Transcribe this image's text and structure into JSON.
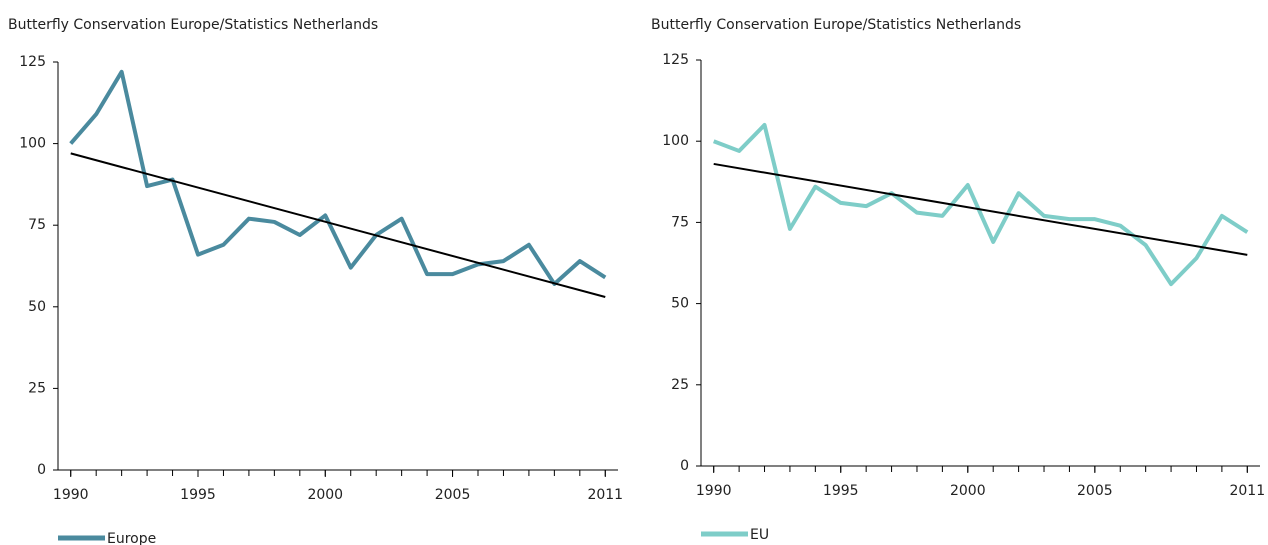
{
  "chart_data": [
    {
      "type": "line",
      "source": "Butterfly Conservation Europe/Statistics Netherlands",
      "x": [
        1990,
        1991,
        1992,
        1993,
        1994,
        1995,
        1996,
        1997,
        1998,
        1999,
        2000,
        2001,
        2002,
        2003,
        2004,
        2005,
        2006,
        2007,
        2008,
        2009,
        2010,
        2011
      ],
      "series": [
        {
          "name": "Europe",
          "color": "#4a8a9e",
          "values": [
            100,
            109,
            122,
            87,
            89,
            66,
            69,
            77,
            76,
            72,
            78,
            62,
            72,
            77,
            60,
            60,
            63,
            64,
            69,
            57,
            64,
            59
          ]
        }
      ],
      "trend": {
        "x": [
          1990,
          2011
        ],
        "values": [
          97,
          53
        ],
        "color": "#000000"
      },
      "xlim": [
        1989.5,
        2011.5
      ],
      "xticks": [
        1990,
        1995,
        2000,
        2005,
        2011
      ],
      "ylim": [
        0,
        125
      ],
      "yticks": [
        0,
        25,
        50,
        75,
        100,
        125
      ],
      "grid": false,
      "legend": "bottom"
    },
    {
      "type": "line",
      "source": "Butterfly Conservation Europe/Statistics Netherlands",
      "x": [
        1990,
        1991,
        1992,
        1993,
        1994,
        1995,
        1996,
        1997,
        1998,
        1999,
        2000,
        2001,
        2002,
        2003,
        2004,
        2005,
        2006,
        2007,
        2008,
        2009,
        2010,
        2011
      ],
      "series": [
        {
          "name": "EU",
          "color": "#7ecdc8",
          "values": [
            100,
            97,
            105,
            73,
            86,
            81,
            80,
            84,
            78,
            77,
            86.5,
            69,
            84,
            77,
            76,
            76,
            74,
            68,
            56,
            64,
            77,
            72
          ]
        }
      ],
      "trend": {
        "x": [
          1990,
          2011
        ],
        "values": [
          93,
          65
        ],
        "color": "#000000"
      },
      "xlim": [
        1989.5,
        2011.5
      ],
      "xticks": [
        1990,
        1995,
        2000,
        2005,
        2011
      ],
      "ylim": [
        0,
        125
      ],
      "yticks": [
        0,
        25,
        50,
        75,
        100,
        125
      ],
      "grid": false,
      "legend": "bottom"
    }
  ]
}
